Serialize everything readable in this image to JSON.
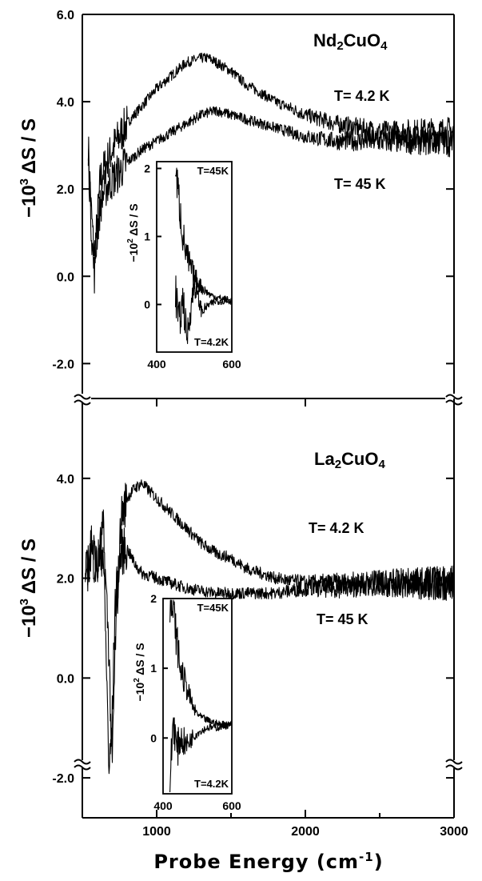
{
  "chart_data": [
    {
      "type": "line",
      "panel": "top",
      "material": "Nd2CuO4",
      "ylabel": "−10³ ΔS / S",
      "xlabel": "Probe Energy (cm-1)",
      "xlim": [
        500,
        3000
      ],
      "ylim": [
        -2.8,
        6.0
      ],
      "yticks": [
        "6.0",
        "4.0",
        "2.0",
        "0.0",
        "-2.0"
      ],
      "ytick_values": [
        6.0,
        4.0,
        2.0,
        0.0,
        -2.0
      ],
      "series": [
        {
          "name": "T= 4.2 K",
          "x": [
            540,
            560,
            580,
            600,
            620,
            650,
            700,
            750,
            800,
            900,
            1000,
            1100,
            1200,
            1300,
            1350,
            1400,
            1500,
            1600,
            1800,
            2000,
            2200,
            2500,
            2800,
            3000
          ],
          "values": [
            3.0,
            1.5,
            0.5,
            1.2,
            2.2,
            2.5,
            2.9,
            3.2,
            3.5,
            3.9,
            4.3,
            4.6,
            4.9,
            5.0,
            5.0,
            4.9,
            4.7,
            4.4,
            4.0,
            3.7,
            3.5,
            3.3,
            3.3,
            3.3
          ]
        },
        {
          "name": "T= 45 K",
          "x": [
            540,
            560,
            580,
            600,
            620,
            650,
            700,
            750,
            800,
            900,
            1000,
            1100,
            1200,
            1300,
            1400,
            1500,
            1600,
            1800,
            2000,
            2200,
            2500,
            2800,
            3000
          ],
          "values": [
            2.8,
            1.2,
            0.0,
            1.0,
            1.6,
            2.0,
            2.2,
            2.4,
            2.6,
            2.9,
            3.1,
            3.3,
            3.5,
            3.7,
            3.8,
            3.7,
            3.6,
            3.4,
            3.2,
            3.1,
            3.1,
            3.1,
            3.1
          ]
        }
      ],
      "annotations": [
        "T= 4.2 K",
        "T= 45 K"
      ],
      "inset": {
        "xticks": [
          "400",
          "600"
        ],
        "xlim": [
          400,
          600
        ],
        "yticks": [
          "2",
          "1",
          "0"
        ],
        "ylim": [
          -0.7,
          2.1
        ],
        "ylabel": "−10² ΔS / S",
        "series": [
          {
            "name": "T=45K",
            "x": [
              450,
              460,
              470,
              480,
              500,
              520,
              540,
              560,
              580,
              600
            ],
            "values": [
              2.0,
              1.5,
              1.0,
              0.7,
              0.4,
              0.25,
              0.15,
              0.1,
              0.08,
              0.05
            ]
          },
          {
            "name": "T=4.2K",
            "x": [
              450,
              460,
              470,
              480,
              500,
              520,
              540,
              560,
              580,
              600
            ],
            "values": [
              0.2,
              -0.3,
              0.1,
              -0.5,
              0.3,
              -0.1,
              0.0,
              0.05,
              0.05,
              0.05
            ]
          }
        ],
        "annotations": [
          "T=45K",
          "T=4.2K"
        ]
      }
    },
    {
      "type": "line",
      "panel": "bottom",
      "material": "La2CuO4",
      "ylabel": "−10³ ΔS / S",
      "xlabel": "Probe Energy (cm-1)",
      "xlim": [
        500,
        3000
      ],
      "ylim": [
        -2.8,
        5.6
      ],
      "xticks": [
        "1000",
        "2000",
        "3000"
      ],
      "xtick_values": [
        1000,
        2000,
        3000
      ],
      "yticks": [
        "4.0",
        "2.0",
        "0.0",
        "-2.0"
      ],
      "ytick_values": [
        4.0,
        2.0,
        0.0,
        -2.0
      ],
      "series": [
        {
          "name": "T= 4.2 K",
          "x": [
            520,
            560,
            600,
            640,
            680,
            700,
            720,
            760,
            800,
            850,
            900,
            1000,
            1100,
            1200,
            1300,
            1400,
            1500,
            1600,
            1800,
            2000,
            2200,
            2500,
            2800,
            3000
          ],
          "values": [
            2.0,
            2.8,
            2.2,
            3.0,
            0.5,
            -1.9,
            0.5,
            3.2,
            3.6,
            3.8,
            3.9,
            3.6,
            3.3,
            3.0,
            2.7,
            2.5,
            2.4,
            2.2,
            2.0,
            1.9,
            1.9,
            1.9,
            1.9,
            1.9
          ]
        },
        {
          "name": "T= 45 K",
          "x": [
            520,
            560,
            600,
            640,
            660,
            680,
            700,
            720,
            760,
            800,
            850,
            900,
            1000,
            1100,
            1200,
            1400,
            1600,
            1800,
            2000,
            2200,
            2500,
            2800,
            3000
          ],
          "values": [
            2.0,
            2.5,
            2.2,
            2.6,
            0.5,
            -1.9,
            -1.0,
            1.5,
            2.5,
            2.6,
            2.3,
            2.1,
            2.0,
            1.9,
            1.8,
            1.7,
            1.7,
            1.7,
            1.8,
            1.8,
            1.9,
            1.9,
            1.9
          ]
        }
      ],
      "annotations": [
        "T= 4.2 K",
        "T= 45 K"
      ],
      "inset": {
        "xticks": [
          "400",
          "600"
        ],
        "xlim": [
          400,
          600
        ],
        "yticks": [
          "2",
          "1",
          "0"
        ],
        "ylim": [
          -0.8,
          2.0
        ],
        "ylabel": "−10² ΔS / S",
        "series": [
          {
            "name": "T=45K",
            "x": [
              420,
              430,
              440,
              450,
              470,
              490,
              510,
              530,
              560,
              600
            ],
            "values": [
              2.0,
              1.8,
              1.4,
              1.0,
              0.7,
              0.4,
              0.3,
              0.25,
              0.2,
              0.2
            ]
          },
          {
            "name": "T=4.2K",
            "x": [
              420,
              430,
              440,
              450,
              470,
              490,
              510,
              530,
              560,
              600
            ],
            "values": [
              -0.6,
              0.3,
              -0.2,
              0.0,
              -0.1,
              0.05,
              0.1,
              0.15,
              0.15,
              0.2
            ]
          }
        ],
        "annotations": [
          "T=45K",
          "T=4.2K"
        ]
      }
    }
  ]
}
